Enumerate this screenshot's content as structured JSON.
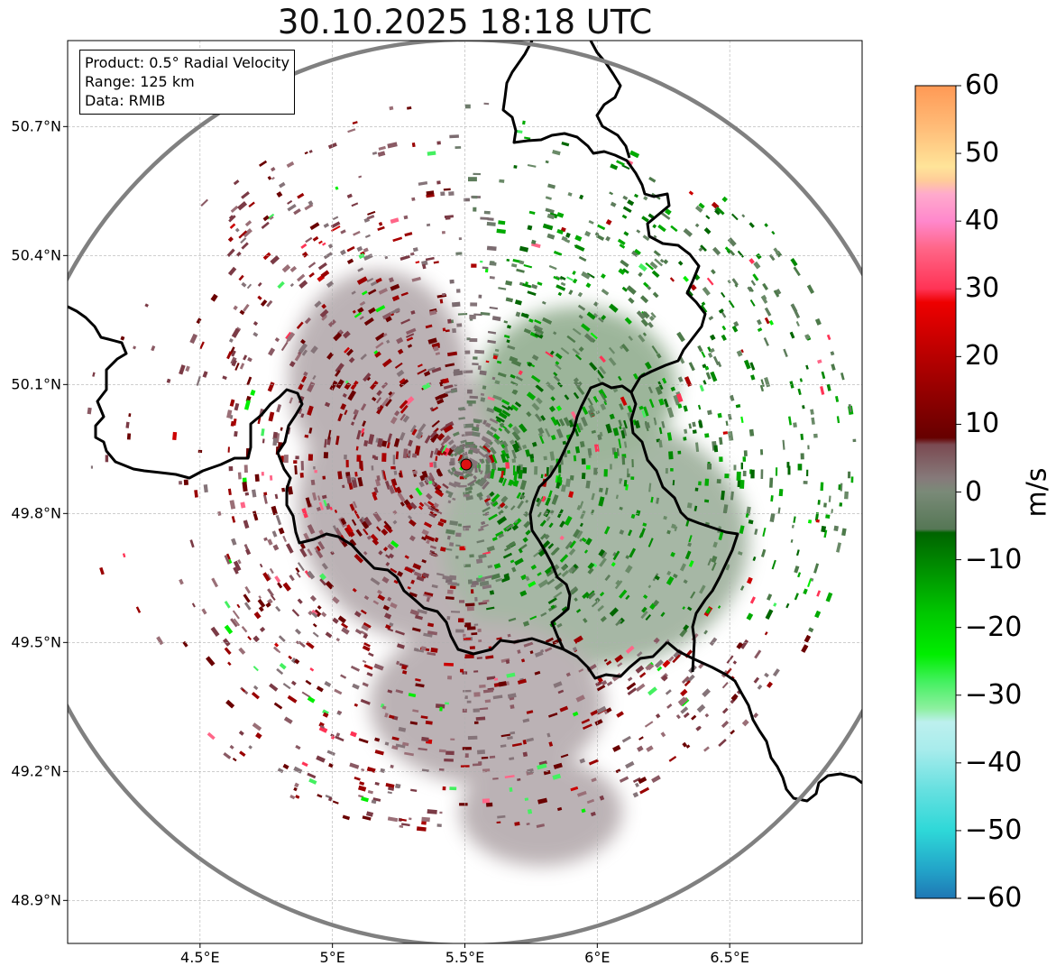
{
  "title": "30.10.2025 18:18 UTC",
  "info": {
    "product": "Product: 0.5° Radial Velocity",
    "range": "Range: 125 km",
    "data": "Data: RMIB"
  },
  "latitudes": [
    "50.7°N",
    "50.4°N",
    "50.1°N",
    "49.8°N",
    "49.5°N",
    "49.2°N",
    "48.9°N"
  ],
  "latitude_values": [
    50.7,
    50.4,
    50.1,
    49.8,
    49.5,
    49.2,
    48.9
  ],
  "longitudes": [
    "4.5°E",
    "5°E",
    "5.5°E",
    "6°E",
    "6.5°E"
  ],
  "longitude_values": [
    4.5,
    5.0,
    5.5,
    6.0,
    6.5
  ],
  "map_extent": {
    "lon_min": 4.0,
    "lon_max": 7.0,
    "lat_min": 48.8,
    "lat_max": 50.9
  },
  "radar_site": {
    "lon": 5.505,
    "lat": 49.914,
    "marker_color": "#dd1111"
  },
  "colorbar": {
    "unit": "m/s",
    "min": -60,
    "max": 60,
    "tick_values": [
      60,
      50,
      40,
      30,
      20,
      10,
      0,
      -10,
      -20,
      -30,
      -40,
      -50,
      -60
    ],
    "tick_labels": [
      "60",
      "50",
      "40",
      "30",
      "20",
      "10",
      "0",
      "−10",
      "−20",
      "−30",
      "−40",
      "−50",
      "−60"
    ],
    "stops": [
      {
        "value": -60,
        "color": "#1f77b4"
      },
      {
        "value": -56,
        "color": "#22a2c8"
      },
      {
        "value": -50,
        "color": "#2ed8d8"
      },
      {
        "value": -44,
        "color": "#66e0e0"
      },
      {
        "value": -38,
        "color": "#a8ecec"
      },
      {
        "value": -34,
        "color": "#bdf0ee"
      },
      {
        "value": -32,
        "color": "#8ef0a0"
      },
      {
        "value": -28,
        "color": "#44f060"
      },
      {
        "value": -24,
        "color": "#00ee00"
      },
      {
        "value": -18,
        "color": "#00c800"
      },
      {
        "value": -12,
        "color": "#009500"
      },
      {
        "value": -6,
        "color": "#006400"
      },
      {
        "value": -5.5,
        "color": "#557755"
      },
      {
        "value": 0,
        "color": "#7a8a78"
      },
      {
        "value": 2,
        "color": "#867a7a"
      },
      {
        "value": 7,
        "color": "#7b4a52"
      },
      {
        "value": 8,
        "color": "#660000"
      },
      {
        "value": 18,
        "color": "#aa0000"
      },
      {
        "value": 28,
        "color": "#ee0000"
      },
      {
        "value": 30,
        "color": "#ff3355"
      },
      {
        "value": 36,
        "color": "#ff6688"
      },
      {
        "value": 40,
        "color": "#ff88cc"
      },
      {
        "value": 44,
        "color": "#ffaacc"
      },
      {
        "value": 46,
        "color": "#ffcc99"
      },
      {
        "value": 48,
        "color": "#ffe499"
      },
      {
        "value": 54,
        "color": "#ffbb77"
      },
      {
        "value": 60,
        "color": "#ff9955"
      }
    ]
  },
  "colors": {
    "border": "#000000",
    "range_ring": "#808080",
    "gridline": "#b0b0b0"
  }
}
